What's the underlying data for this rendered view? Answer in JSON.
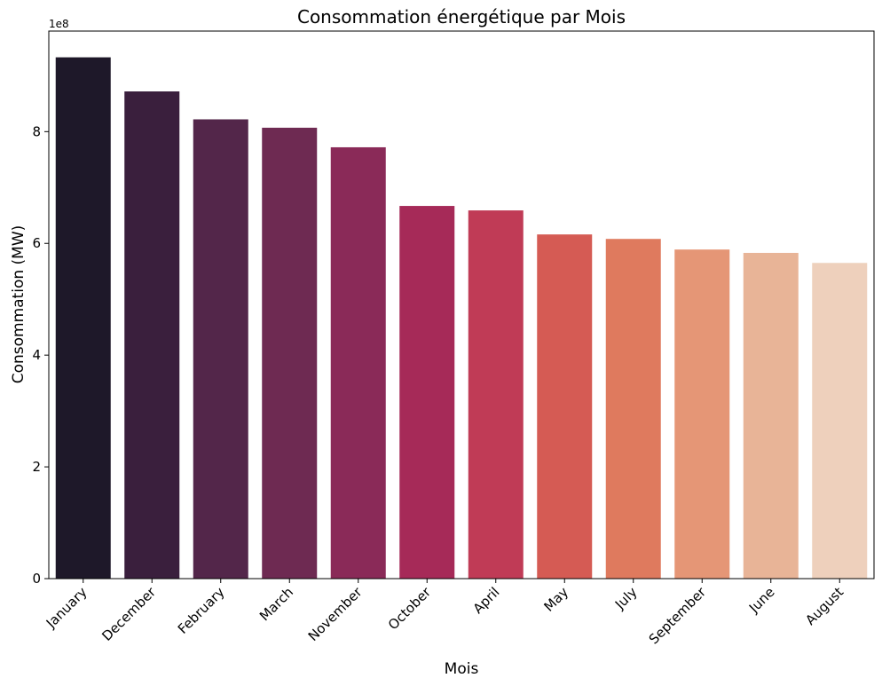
{
  "chart_data": {
    "type": "bar",
    "title": "Consommation énergétique par Mois",
    "xlabel": "Mois",
    "ylabel": "Consommation (MW)",
    "y_offset_label": "1e8",
    "y_scale": 100000000,
    "ylim": [
      0,
      980000000
    ],
    "yticks": [
      0,
      200000000,
      400000000,
      600000000,
      800000000
    ],
    "ytick_labels": [
      "0",
      "2",
      "4",
      "6",
      "8"
    ],
    "grid": false,
    "categories": [
      "January",
      "December",
      "February",
      "March",
      "November",
      "October",
      "April",
      "May",
      "July",
      "September",
      "June",
      "August"
    ],
    "values": [
      933000000,
      872000000,
      822000000,
      807000000,
      772000000,
      667000000,
      659000000,
      616000000,
      608000000,
      589000000,
      583000000,
      565000000
    ],
    "colors": [
      "#1e1829",
      "#3a1f3d",
      "#53264a",
      "#6e2a52",
      "#8a2a58",
      "#a62a58",
      "#c03b56",
      "#d55b54",
      "#df7a5e",
      "#e59676",
      "#e8b497",
      "#eed0bc"
    ]
  }
}
